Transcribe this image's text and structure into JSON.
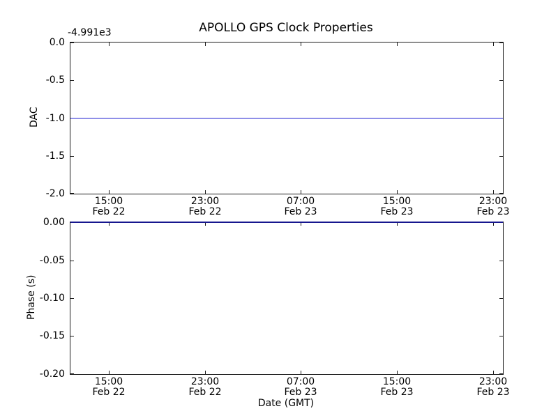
{
  "figure": {
    "background_color": "#ffffff",
    "spine_color": "#1a1a1a"
  },
  "chart_data": [
    {
      "type": "line",
      "title": "APOLLO GPS Clock Properties",
      "ylabel": "DAC",
      "y_axis_offset_text": "-4.991e3",
      "ylim": [
        -2.0,
        0.0
      ],
      "yticks": [
        0.0,
        -0.5,
        -1.0,
        -1.5,
        -2.0
      ],
      "ytick_labels": [
        "0.0",
        "-0.5",
        "-1.0",
        "-1.5",
        "-2.0"
      ],
      "xticks": [
        {
          "time": "15:00",
          "date": "Feb 22",
          "frac": 0.089
        },
        {
          "time": "23:00",
          "date": "Feb 22",
          "frac": 0.311
        },
        {
          "time": "07:00",
          "date": "Feb 23",
          "frac": 0.532
        },
        {
          "time": "15:00",
          "date": "Feb 23",
          "frac": 0.755
        },
        {
          "time": "23:00",
          "date": "Feb 23",
          "frac": 0.977
        }
      ],
      "series": [
        {
          "name": "DAC",
          "shape": "hline",
          "value": -1.0,
          "color": "#8f8fe8"
        }
      ],
      "grid": false,
      "legend": null
    },
    {
      "type": "line",
      "title": "",
      "ylabel": "Phase (s)",
      "xlabel": "Date (GMT)",
      "ylim": [
        -0.2,
        0.0
      ],
      "yticks": [
        0.0,
        -0.05,
        -0.1,
        -0.15,
        -0.2
      ],
      "ytick_labels": [
        "0.00",
        "-0.05",
        "-0.10",
        "-0.15",
        "-0.20"
      ],
      "xticks": [
        {
          "time": "15:00",
          "date": "Feb 22",
          "frac": 0.089
        },
        {
          "time": "23:00",
          "date": "Feb 22",
          "frac": 0.311
        },
        {
          "time": "07:00",
          "date": "Feb 23",
          "frac": 0.532
        },
        {
          "time": "15:00",
          "date": "Feb 23",
          "frac": 0.755
        },
        {
          "time": "23:00",
          "date": "Feb 23",
          "frac": 0.977
        }
      ],
      "series": [
        {
          "name": "Phase",
          "shape": "hline",
          "value": 0.0,
          "color": "#16168e"
        }
      ],
      "grid": false,
      "legend": null
    }
  ]
}
